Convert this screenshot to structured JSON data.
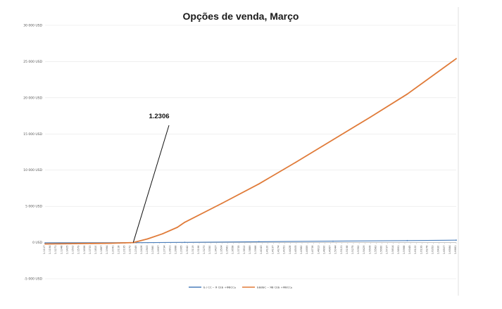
{
  "chart_data": {
    "type": "line",
    "title": "Opções de venda, Março",
    "xlabel": "",
    "ylabel": "",
    "ylim": [
      -5000,
      30000
    ],
    "y_ticks": [
      -5000,
      0,
      5000,
      10000,
      15000,
      20000,
      25000,
      30000
    ],
    "y_tick_labels": [
      "-5 000 USD",
      "0 USD",
      "5 000 USD",
      "10 000 USD",
      "15 000 USD",
      "20 000 USD",
      "25 000 USD",
      "30 000 USD"
    ],
    "x_tick_labels": [
      "1.1117",
      "1.1194",
      "1.1271",
      "1.1348",
      "1.1425",
      "1.1502",
      "1.1579",
      "1.1656",
      "1.1733",
      "1.1810",
      "1.1887",
      "1.1964",
      "1.2041",
      "1.2118",
      "1.2195",
      "1.2272",
      "1.2349",
      "1.2426",
      "1.2503",
      "1.2580",
      "1.2657",
      "1.2734",
      "1.2811",
      "1.2888",
      "1.2965",
      "1.3042",
      "1.3119",
      "1.3196",
      "1.3273",
      "1.3350",
      "1.3427",
      "1.3504",
      "1.3581",
      "1.3658",
      "1.3735",
      "1.3812",
      "1.3889",
      "1.3966",
      "1.4043",
      "1.4120",
      "1.4197",
      "1.4274",
      "1.4351",
      "1.4428",
      "1.4505",
      "1.4582",
      "1.4659",
      "1.4736",
      "1.4813",
      "1.4890",
      "1.4967",
      "1.5044",
      "1.5121",
      "1.5198",
      "1.5275",
      "1.5352",
      "1.5429",
      "1.5506",
      "1.5583",
      "1.5660",
      "1.5737",
      "1.5814",
      "1.5891",
      "1.5968",
      "1.6045",
      "1.6122",
      "1.6199",
      "1.6276",
      "1.6353",
      "1.6430",
      "1.6507",
      "1.6584",
      "1.6661"
    ],
    "grid": true,
    "legend_position": "bottom",
    "series": [
      {
        "name": "Б / СС -- Я СЕБ +ФВССь",
        "color": "#4a7ebb",
        "x": [
          1.1117,
          1.2306,
          1.3,
          1.4,
          1.5,
          1.6,
          1.6661
        ],
        "y": [
          -50,
          -20,
          30,
          110,
          190,
          270,
          330
        ]
      },
      {
        "name": "ББВБС -- ЯВ СЕБ +ФВССь",
        "color": "#e07b39",
        "x": [
          1.1117,
          1.2,
          1.2306,
          1.25,
          1.27,
          1.29,
          1.3,
          1.35,
          1.4,
          1.45,
          1.5,
          1.55,
          1.6,
          1.6661
        ],
        "y": [
          -200,
          -100,
          0,
          500,
          1200,
          2100,
          2800,
          5400,
          8100,
          11100,
          14200,
          17300,
          20500,
          25400
        ]
      }
    ],
    "annotations": [
      {
        "text": "1.2306",
        "x": 1.2306,
        "y": 0
      }
    ]
  }
}
